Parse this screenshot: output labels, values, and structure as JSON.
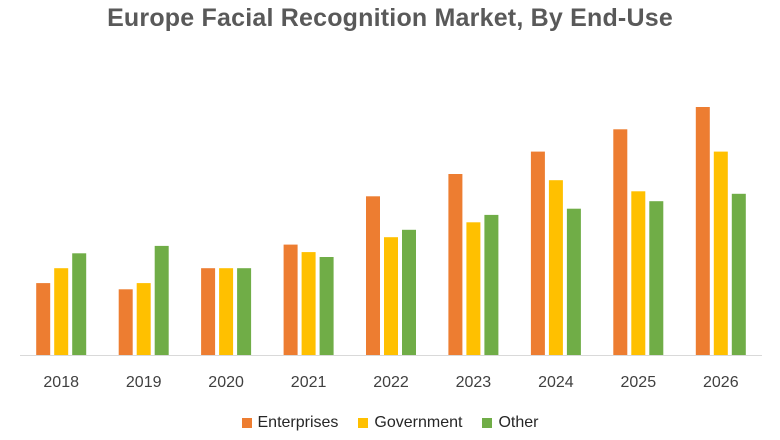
{
  "chart_data": {
    "type": "bar",
    "title": "Europe Facial Recognition Market, By End-Use",
    "xlabel": "",
    "ylabel": "",
    "ylim": [
      0,
      100
    ],
    "grid": false,
    "legend_position": "bottom",
    "categories": [
      "2018",
      "2019",
      "2020",
      "2021",
      "2022",
      "2023",
      "2024",
      "2025",
      "2026"
    ],
    "series": [
      {
        "name": "Enterprises",
        "color": "#ED7D31",
        "values": [
          29,
          26.5,
          35,
          44.5,
          64,
          73,
          82,
          91,
          100
        ]
      },
      {
        "name": "Government",
        "color": "#FFC000",
        "values": [
          35,
          29,
          35,
          41.5,
          47.5,
          53.5,
          70.5,
          66,
          82
        ]
      },
      {
        "name": "Other",
        "color": "#70AD47",
        "values": [
          41,
          44,
          35,
          39.5,
          50.5,
          56.5,
          59,
          62,
          65
        ]
      }
    ]
  }
}
